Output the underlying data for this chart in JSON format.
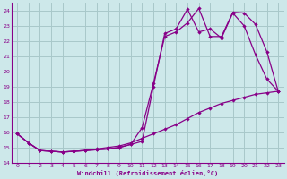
{
  "background_color": "#cde8ea",
  "line_color": "#880088",
  "grid_color": "#a8c8ca",
  "xlabel": "Windchill (Refroidissement éolien,°C)",
  "xlim": [
    -0.5,
    23.5
  ],
  "ylim": [
    14,
    24.5
  ],
  "xticks": [
    0,
    1,
    2,
    3,
    4,
    5,
    6,
    7,
    8,
    9,
    10,
    11,
    12,
    13,
    14,
    15,
    16,
    17,
    18,
    19,
    20,
    21,
    22,
    23
  ],
  "yticks": [
    14,
    15,
    16,
    17,
    18,
    19,
    20,
    21,
    22,
    23,
    24
  ],
  "line1_x": [
    0,
    1,
    2,
    3,
    4,
    5,
    6,
    7,
    8,
    9,
    10,
    11,
    12,
    13,
    14,
    15,
    16,
    17,
    18,
    19,
    20,
    21,
    22,
    23
  ],
  "line1_y": [
    15.9,
    15.3,
    14.8,
    14.75,
    14.7,
    14.75,
    14.8,
    14.9,
    15.0,
    15.1,
    15.3,
    15.6,
    15.9,
    16.2,
    16.5,
    16.9,
    17.3,
    17.6,
    17.9,
    18.1,
    18.3,
    18.5,
    18.6,
    18.7
  ],
  "line2_x": [
    0,
    1,
    2,
    3,
    4,
    5,
    6,
    7,
    8,
    9,
    10,
    11,
    12,
    13,
    14,
    15,
    16,
    17,
    18,
    19,
    20,
    21,
    22,
    23
  ],
  "line2_y": [
    15.9,
    15.3,
    14.8,
    14.75,
    14.7,
    14.75,
    14.8,
    14.85,
    14.9,
    15.0,
    15.2,
    16.3,
    19.2,
    22.3,
    22.6,
    23.2,
    24.15,
    22.3,
    22.3,
    23.9,
    23.85,
    23.1,
    21.3,
    18.7
  ],
  "line3_x": [
    0,
    1,
    2,
    3,
    4,
    5,
    6,
    7,
    8,
    9,
    10,
    11,
    12,
    13,
    14,
    15,
    16,
    17,
    18,
    19,
    20,
    21,
    22,
    23
  ],
  "line3_y": [
    15.9,
    15.3,
    14.8,
    14.75,
    14.7,
    14.75,
    14.8,
    14.85,
    14.9,
    15.0,
    15.2,
    15.4,
    19.0,
    22.5,
    22.8,
    24.1,
    22.6,
    22.8,
    22.2,
    23.85,
    23.0,
    21.1,
    19.5,
    18.7
  ]
}
